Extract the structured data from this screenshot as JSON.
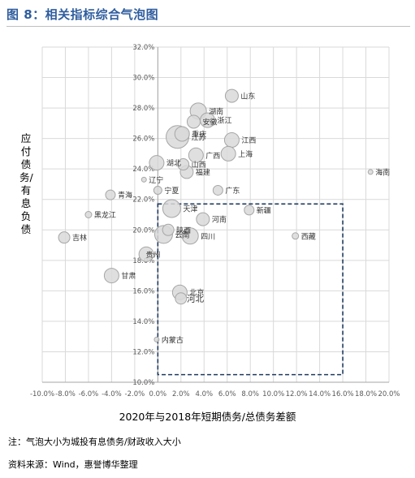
{
  "title": "图 8：相关指标综合气泡图",
  "notes": {
    "bubble_size": "注：气泡大小为城投有息债务/财政收入大小",
    "source": "资料来源：Wind，惠誉博华整理"
  },
  "colors": {
    "title": "#2f5d9e",
    "bubble_fill": "#d9d9d9",
    "bubble_stroke": "#a6a6a6",
    "highlight_box": "#1f3a5f",
    "grid": "#d9d9d9"
  },
  "chart_data": {
    "type": "scatter",
    "subtype": "bubble",
    "title": "",
    "xlabel": "2020年与2018年短期债务/总债务差额",
    "ylabel": "应付债务/有息负债",
    "xlim": [
      -0.1,
      0.2
    ],
    "ylim": [
      0.1,
      0.32
    ],
    "x_tick_labels": [
      "-10.0%",
      "-8.0%",
      "-6.0%",
      "-4.0%",
      "-2.0%",
      "0.0%",
      "2.0%",
      "4.0%",
      "6.0%",
      "8.0%",
      "10.0%",
      "12.0%",
      "14.0%",
      "16.0%",
      "18.0%",
      "20.0%"
    ],
    "y_tick_labels": [
      "10.0%",
      "12.0%",
      "14.0%",
      "16.0%",
      "18.0%",
      "20.0%",
      "22.0%",
      "24.0%",
      "26.0%",
      "28.0%",
      "30.0%",
      "32.0%"
    ],
    "grid": "both",
    "legend": "none",
    "highlight_region": {
      "x": [
        0.0,
        0.16
      ],
      "y": [
        0.105,
        0.217
      ]
    },
    "points": [
      {
        "label": "山东",
        "x": 0.064,
        "y": 0.288,
        "size": 8,
        "label_dx": 1,
        "label_dy": 0
      },
      {
        "label": "湖南",
        "x": 0.035,
        "y": 0.278,
        "size": 10,
        "label_dx": 1,
        "label_dy": 0
      },
      {
        "label": "浙江",
        "x": 0.043,
        "y": 0.272,
        "size": 9,
        "label_dx": 1,
        "label_dy": 0
      },
      {
        "label": "安徽",
        "x": 0.031,
        "y": 0.271,
        "size": 8,
        "label_dx": 1,
        "label_dy": 0
      },
      {
        "label": "重庆",
        "x": 0.021,
        "y": 0.263,
        "size": 9,
        "label_dx": 1,
        "label_dy": 0
      },
      {
        "label": "江苏",
        "x": 0.017,
        "y": 0.261,
        "size": 14,
        "label_dx": 1,
        "label_dy": 0
      },
      {
        "label": "江西",
        "x": 0.064,
        "y": 0.259,
        "size": 9,
        "label_dx": 1,
        "label_dy": 0
      },
      {
        "label": "广西",
        "x": 0.033,
        "y": 0.249,
        "size": 9,
        "label_dx": 1,
        "label_dy": 0
      },
      {
        "label": "上海",
        "x": 0.061,
        "y": 0.25,
        "size": 9,
        "label_dx": 1,
        "label_dy": 0
      },
      {
        "label": "湖北",
        "x": -0.001,
        "y": 0.244,
        "size": 9,
        "label_dx": 1,
        "label_dy": 0
      },
      {
        "label": "山西",
        "x": 0.022,
        "y": 0.243,
        "size": 7,
        "label_dx": 1,
        "label_dy": 0
      },
      {
        "label": "福建",
        "x": 0.025,
        "y": 0.238,
        "size": 8,
        "label_dx": 1,
        "label_dy": 0
      },
      {
        "label": "海南",
        "x": 0.184,
        "y": 0.238,
        "size": 3,
        "label_dx": 1,
        "label_dy": 0
      },
      {
        "label": "辽宁",
        "x": -0.012,
        "y": 0.233,
        "size": 3,
        "label_dx": 1,
        "label_dy": 0
      },
      {
        "label": "宁夏",
        "x": 0.0,
        "y": 0.226,
        "size": 5,
        "label_dx": 1,
        "label_dy": 0
      },
      {
        "label": "广东",
        "x": 0.052,
        "y": 0.226,
        "size": 6,
        "label_dx": 1,
        "label_dy": 0
      },
      {
        "label": "青海",
        "x": -0.041,
        "y": 0.223,
        "size": 6,
        "label_dx": 1,
        "label_dy": 0
      },
      {
        "label": "天津",
        "x": 0.012,
        "y": 0.214,
        "size": 11,
        "label_dx": 1,
        "label_dy": 0
      },
      {
        "label": "新疆",
        "x": 0.079,
        "y": 0.213,
        "size": 6,
        "label_dx": 1,
        "label_dy": 0
      },
      {
        "label": "黑龙江",
        "x": -0.06,
        "y": 0.21,
        "size": 4,
        "label_dx": 1,
        "label_dy": 0
      },
      {
        "label": "河南",
        "x": 0.039,
        "y": 0.207,
        "size": 8,
        "label_dx": 1,
        "label_dy": 0
      },
      {
        "label": "陕西",
        "x": 0.009,
        "y": 0.2,
        "size": 7,
        "label_dx": 1,
        "label_dy": 0
      },
      {
        "label": "云南",
        "x": 0.005,
        "y": 0.197,
        "size": 11,
        "label_dx": 1,
        "label_dy": 0
      },
      {
        "label": "四川",
        "x": 0.028,
        "y": 0.196,
        "size": 10,
        "label_dx": 1,
        "label_dy": 0
      },
      {
        "label": "西藏",
        "x": 0.119,
        "y": 0.196,
        "size": 4,
        "label_dx": 1,
        "label_dy": 0
      },
      {
        "label": "吉林",
        "x": -0.081,
        "y": 0.195,
        "size": 7,
        "label_dx": 1,
        "label_dy": 0
      },
      {
        "label": "贵州",
        "x": -0.01,
        "y": 0.184,
        "size": 9,
        "label_dx": -0.4,
        "label_dy": 0
      },
      {
        "label": "甘肃",
        "x": -0.04,
        "y": 0.17,
        "size": 9,
        "label_dx": 1,
        "label_dy": 0
      },
      {
        "label": "北京",
        "x": 0.019,
        "y": 0.159,
        "size": 9,
        "label_dx": 1,
        "label_dy": 0
      },
      {
        "label": "河北",
        "x": 0.02,
        "y": 0.155,
        "size": 7,
        "label_dx": 0.6,
        "label_dy": 0,
        "big": true
      },
      {
        "label": "内蒙古",
        "x": -0.001,
        "y": 0.128,
        "size": 3,
        "label_dx": 1,
        "label_dy": 0
      }
    ]
  }
}
